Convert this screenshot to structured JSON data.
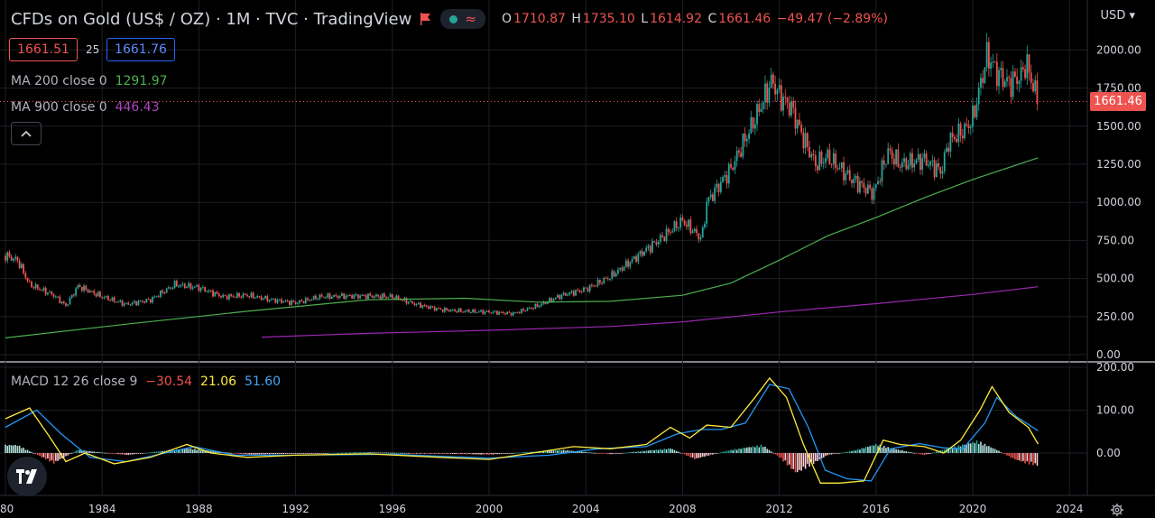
{
  "header": {
    "title": "CFDs on Gold (US$ / OZ) · 1M · TVC · TradingView",
    "ohlc": {
      "o_label": "O",
      "o": "1710.87",
      "h_label": "H",
      "h": "1735.10",
      "l_label": "L",
      "l": "1614.92",
      "c_label": "C",
      "c": "1661.46",
      "change": "−49.47 (−2.89%)"
    }
  },
  "quote": {
    "bid": "1661.51",
    "spread": "25",
    "ask": "1661.76"
  },
  "indicators": {
    "ma200": {
      "label": "MA 200 close 0",
      "value": "1291.97",
      "color": "#4caf50"
    },
    "ma900": {
      "label": "MA 900 close 0",
      "value": "446.43",
      "color": "#9c27b0"
    },
    "macd": {
      "label": "MACD 12 26 close 9",
      "hist": "−30.54",
      "macd": "21.06",
      "signal": "51.60"
    }
  },
  "currency": "USD",
  "last_price": "1661.46",
  "colors": {
    "up": "#26a69a",
    "down": "#ef5350",
    "macd_line": "#ffeb3b",
    "signal_line": "#2196f3"
  },
  "icons": [
    "flag-icon",
    "status-dot-icon",
    "wave-icon",
    "chevron-up-icon",
    "tradingview-logo-icon",
    "settings-gear-icon"
  ],
  "chart_data": {
    "type": "line",
    "price_axis_ticks": [
      "2000.00",
      "1750.00",
      "1500.00",
      "1250.00",
      "1000.00",
      "750.00",
      "500.00",
      "250.00",
      "0.00"
    ],
    "macd_axis_ticks": [
      "200.00",
      "100.00",
      "0.00"
    ],
    "time_axis_ticks": [
      "80",
      "1984",
      "1988",
      "1992",
      "1996",
      "2000",
      "2004",
      "2008",
      "2012",
      "2016",
      "2020",
      "2024"
    ],
    "price_series": {
      "x": [
        1980,
        1980.5,
        1981,
        1982,
        1982.5,
        1983,
        1984,
        1985,
        1986,
        1987,
        1988,
        1989,
        1990,
        1991,
        1992,
        1993,
        1994,
        1995,
        1996,
        1997,
        1998,
        1999,
        2000,
        2001,
        2002,
        2003,
        2004,
        2005,
        2006,
        2007,
        2008,
        2008.8,
        2009,
        2010,
        2011,
        2011.7,
        2012,
        2012.5,
        2013,
        2013.5,
        2014,
        2015,
        2015.9,
        2016.5,
        2017,
        2018,
        2018.7,
        2019,
        2019.7,
        2020,
        2020.6,
        2021,
        2021.5,
        2022,
        2022.2,
        2022.7
      ],
      "y": [
        650,
        620,
        460,
        390,
        320,
        450,
        380,
        330,
        360,
        460,
        440,
        380,
        390,
        360,
        340,
        380,
        385,
        385,
        380,
        330,
        295,
        285,
        280,
        270,
        320,
        390,
        430,
        510,
        630,
        750,
        880,
        760,
        1000,
        1220,
        1550,
        1800,
        1700,
        1620,
        1420,
        1250,
        1300,
        1150,
        1060,
        1330,
        1250,
        1280,
        1200,
        1400,
        1480,
        1550,
        1970,
        1850,
        1780,
        1830,
        1920,
        1661
      ]
    },
    "ma200": {
      "x": [
        1980,
        1985,
        1990,
        1995,
        1999,
        2002,
        2005,
        2008,
        2010,
        2012,
        2014,
        2016,
        2018,
        2020,
        2022.7
      ],
      "y": [
        110,
        200,
        285,
        360,
        370,
        345,
        350,
        390,
        470,
        620,
        780,
        900,
        1030,
        1150,
        1292
      ]
    },
    "ma900": {
      "x": [
        1990.6,
        1995,
        2000,
        2005,
        2008,
        2012,
        2016,
        2020,
        2022.7
      ],
      "y": [
        115,
        140,
        160,
        185,
        215,
        280,
        335,
        395,
        446
      ]
    },
    "macd_line": {
      "x": [
        1980,
        1981,
        1981.8,
        1982.5,
        1983.3,
        1984.5,
        1986,
        1987.5,
        1988.5,
        1990,
        1992,
        1995,
        1998,
        2000,
        2002,
        2003.5,
        2005,
        2006.5,
        2007.5,
        2008.3,
        2009,
        2010,
        2011,
        2011.6,
        2012.3,
        2013,
        2013.7,
        2014.5,
        2015.5,
        2016.3,
        2017,
        2018,
        2018.8,
        2019.5,
        2020.3,
        2020.8,
        2021.5,
        2022.3,
        2022.7
      ],
      "y": [
        80,
        105,
        40,
        -20,
        0,
        -25,
        -10,
        20,
        0,
        -10,
        -5,
        -2,
        -10,
        -15,
        2,
        15,
        10,
        20,
        60,
        35,
        65,
        60,
        130,
        175,
        130,
        20,
        -70,
        -70,
        -65,
        30,
        20,
        15,
        0,
        30,
        100,
        155,
        95,
        60,
        21
      ]
    },
    "signal_line": {
      "x": [
        1980,
        1981.3,
        1982.3,
        1983.5,
        1985,
        1987.8,
        1989.5,
        1992,
        1996,
        2000,
        2002.5,
        2004.5,
        2006.5,
        2007.8,
        2008.8,
        2009.6,
        2010.6,
        2011.6,
        2012.4,
        2013.2,
        2013.9,
        2014.8,
        2015.8,
        2016.6,
        2017.8,
        2018.8,
        2019.6,
        2020.5,
        2021,
        2021.8,
        2022.7
      ],
      "y": [
        60,
        100,
        45,
        -10,
        -20,
        15,
        -5,
        -5,
        -3,
        -12,
        -5,
        10,
        15,
        45,
        55,
        55,
        70,
        160,
        150,
        60,
        -40,
        -60,
        -65,
        10,
        22,
        12,
        10,
        70,
        130,
        85,
        52
      ]
    },
    "histogram": {
      "x": [
        1980.5,
        1982,
        1983,
        1985,
        1987.5,
        1990,
        1995,
        2000,
        2003,
        2005,
        2007.5,
        2008.5,
        2010,
        2011.3,
        2012,
        2012.7,
        2013.3,
        2014,
        2015,
        2016,
        2016.8,
        2018,
        2019,
        2020.2,
        2021,
        2021.7,
        2022.2,
        2022.7
      ],
      "y": [
        20,
        -25,
        8,
        -5,
        12,
        -4,
        2,
        -4,
        8,
        -3,
        12,
        -15,
        8,
        20,
        -10,
        -50,
        -30,
        -5,
        5,
        22,
        10,
        -5,
        12,
        30,
        8,
        -15,
        -25,
        -31
      ]
    }
  }
}
